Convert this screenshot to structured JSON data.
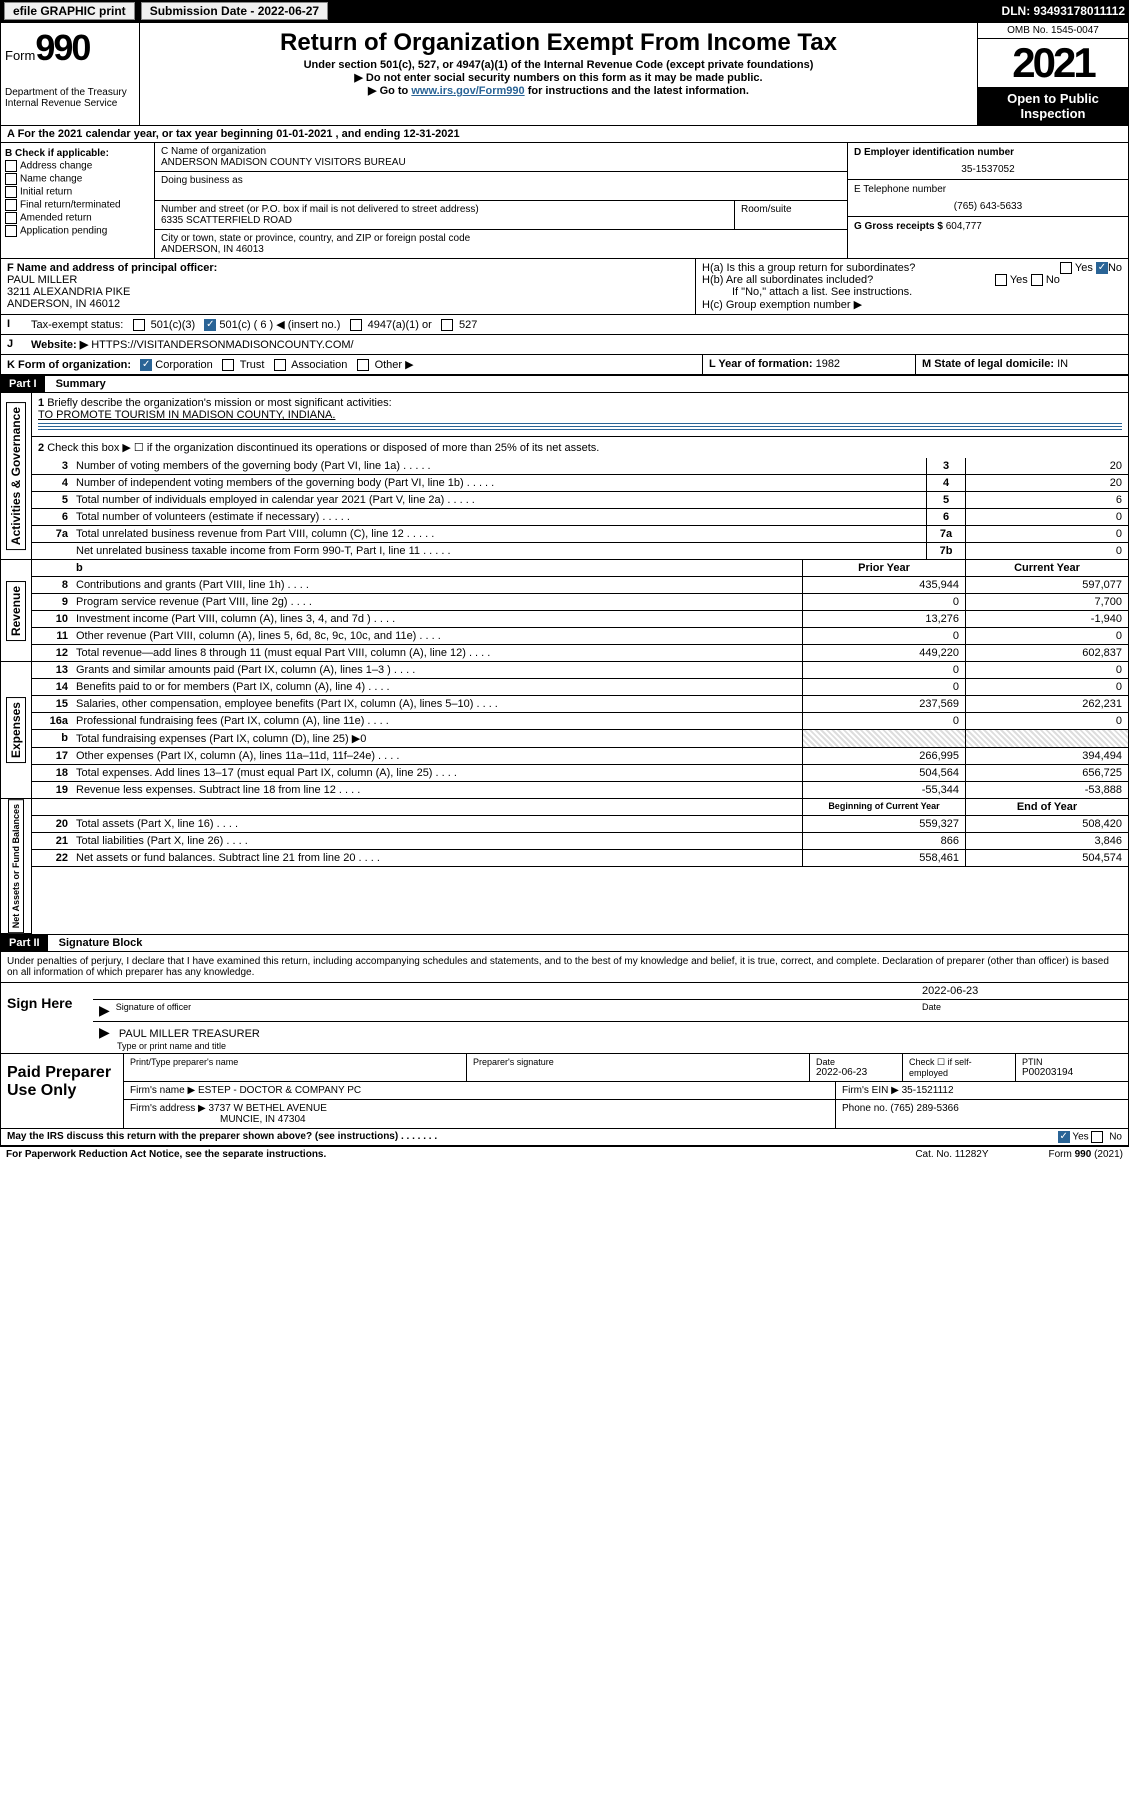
{
  "topbar": {
    "efile": "efile GRAPHIC print",
    "submission_label": "Submission Date - 2022-06-27",
    "dln": "DLN: 93493178011112"
  },
  "header": {
    "form_prefix": "Form",
    "form_num": "990",
    "dept": "Department of the Treasury",
    "irs": "Internal Revenue Service",
    "title": "Return of Organization Exempt From Income Tax",
    "sub1": "Under section 501(c), 527, or 4947(a)(1) of the Internal Revenue Code (except private foundations)",
    "sub2": "▶ Do not enter social security numbers on this form as it may be made public.",
    "sub3_pre": "▶ Go to ",
    "sub3_link": "www.irs.gov/Form990",
    "sub3_post": " for instructions and the latest information.",
    "omb": "OMB No. 1545-0047",
    "year": "2021",
    "open": "Open to Public Inspection"
  },
  "rowA": "A For the 2021 calendar year, or tax year beginning 01-01-2021    , and ending 12-31-2021",
  "colB": {
    "label": "B Check if applicable:",
    "opts": [
      "Address change",
      "Name change",
      "Initial return",
      "Final return/terminated",
      "Amended return",
      "Application pending"
    ]
  },
  "org": {
    "name_lbl": "C Name of organization",
    "name": "ANDERSON MADISON COUNTY VISITORS BUREAU",
    "dba_lbl": "Doing business as",
    "addr_lbl": "Number and street (or P.O. box if mail is not delivered to street address)",
    "room_lbl": "Room/suite",
    "addr": "6335 SCATTERFIELD ROAD",
    "city_lbl": "City or town, state or province, country, and ZIP or foreign postal code",
    "city": "ANDERSON, IN   46013"
  },
  "right": {
    "ein_lbl": "D Employer identification number",
    "ein": "35-1537052",
    "tel_lbl": "E Telephone number",
    "tel": "(765) 643-5633",
    "gross_lbl": "G Gross receipts $",
    "gross": "604,777"
  },
  "officer": {
    "lbl": "F Name and address of principal officer:",
    "name": "PAUL MILLER",
    "addr1": "3211 ALEXANDRIA PIKE",
    "addr2": "ANDERSON, IN   46012"
  },
  "H": {
    "ha": "H(a)  Is this a group return for subordinates?",
    "hb": "H(b)  Are all subordinates included?",
    "hb_note": "If \"No,\" attach a list. See instructions.",
    "hc": "H(c)  Group exemption number ▶",
    "yes": "Yes",
    "no": "No"
  },
  "I": {
    "lbl": "Tax-exempt status:",
    "opts": [
      "501(c)(3)",
      "501(c) ( 6 ) ◀ (insert no.)",
      "4947(a)(1) or",
      "527"
    ]
  },
  "J": {
    "lbl": "Website: ▶",
    "val": "HTTPS://VISITANDERSONMADISONCOUNTY.COM/"
  },
  "K": {
    "lbl": "K Form of organization:",
    "opts": [
      "Corporation",
      "Trust",
      "Association",
      "Other ▶"
    ]
  },
  "L": {
    "lbl": "L Year of formation:",
    "val": "1982"
  },
  "M": {
    "lbl": "M State of legal domicile:",
    "val": "IN"
  },
  "part1": {
    "hdr": "Part I",
    "title": "Summary"
  },
  "summary": {
    "line1_lbl": "Briefly describe the organization's mission or most significant activities:",
    "line1_val": "TO PROMOTE TOURISM IN MADISON COUNTY, INDIANA.",
    "line2": "Check this box ▶ ☐  if the organization discontinued its operations or disposed of more than 25% of its net assets.",
    "gov_lbl": "Activities & Governance",
    "rev_lbl": "Revenue",
    "exp_lbl": "Expenses",
    "net_lbl": "Net Assets or Fund Balances",
    "lines_gov": [
      {
        "n": "3",
        "d": "Number of voting members of the governing body (Part VI, line 1a)",
        "k": "3",
        "v": "20"
      },
      {
        "n": "4",
        "d": "Number of independent voting members of the governing body (Part VI, line 1b)",
        "k": "4",
        "v": "20"
      },
      {
        "n": "5",
        "d": "Total number of individuals employed in calendar year 2021 (Part V, line 2a)",
        "k": "5",
        "v": "6"
      },
      {
        "n": "6",
        "d": "Total number of volunteers (estimate if necessary)",
        "k": "6",
        "v": "0"
      },
      {
        "n": "7a",
        "d": "Total unrelated business revenue from Part VIII, column (C), line 12",
        "k": "7a",
        "v": "0"
      },
      {
        "n": "",
        "d": "Net unrelated business taxable income from Form 990-T, Part I, line 11",
        "k": "7b",
        "v": "0"
      }
    ],
    "hdr_prior": "Prior Year",
    "hdr_current": "Current Year",
    "lines_rev": [
      {
        "n": "8",
        "d": "Contributions and grants (Part VIII, line 1h)",
        "p": "435,944",
        "c": "597,077"
      },
      {
        "n": "9",
        "d": "Program service revenue (Part VIII, line 2g)",
        "p": "0",
        "c": "7,700"
      },
      {
        "n": "10",
        "d": "Investment income (Part VIII, column (A), lines 3, 4, and 7d )",
        "p": "13,276",
        "c": "-1,940"
      },
      {
        "n": "11",
        "d": "Other revenue (Part VIII, column (A), lines 5, 6d, 8c, 9c, 10c, and 11e)",
        "p": "0",
        "c": "0"
      },
      {
        "n": "12",
        "d": "Total revenue—add lines 8 through 11 (must equal Part VIII, column (A), line 12)",
        "p": "449,220",
        "c": "602,837"
      }
    ],
    "lines_exp": [
      {
        "n": "13",
        "d": "Grants and similar amounts paid (Part IX, column (A), lines 1–3 )",
        "p": "0",
        "c": "0"
      },
      {
        "n": "14",
        "d": "Benefits paid to or for members (Part IX, column (A), line 4)",
        "p": "0",
        "c": "0"
      },
      {
        "n": "15",
        "d": "Salaries, other compensation, employee benefits (Part IX, column (A), lines 5–10)",
        "p": "237,569",
        "c": "262,231"
      },
      {
        "n": "16a",
        "d": "Professional fundraising fees (Part IX, column (A), line 11e)",
        "p": "0",
        "c": "0"
      },
      {
        "n": "b",
        "d": "Total fundraising expenses (Part IX, column (D), line 25) ▶0",
        "p": "",
        "c": "",
        "shade": true
      },
      {
        "n": "17",
        "d": "Other expenses (Part IX, column (A), lines 11a–11d, 11f–24e)",
        "p": "266,995",
        "c": "394,494"
      },
      {
        "n": "18",
        "d": "Total expenses. Add lines 13–17 (must equal Part IX, column (A), line 25)",
        "p": "504,564",
        "c": "656,725"
      },
      {
        "n": "19",
        "d": "Revenue less expenses. Subtract line 18 from line 12",
        "p": "-55,344",
        "c": "-53,888"
      }
    ],
    "hdr_beg": "Beginning of Current Year",
    "hdr_end": "End of Year",
    "lines_net": [
      {
        "n": "20",
        "d": "Total assets (Part X, line 16)",
        "p": "559,327",
        "c": "508,420"
      },
      {
        "n": "21",
        "d": "Total liabilities (Part X, line 26)",
        "p": "866",
        "c": "3,846"
      },
      {
        "n": "22",
        "d": "Net assets or fund balances. Subtract line 21 from line 20",
        "p": "558,461",
        "c": "504,574"
      }
    ]
  },
  "part2": {
    "hdr": "Part II",
    "title": "Signature Block"
  },
  "sig": {
    "decl": "Under penalties of perjury, I declare that I have examined this return, including accompanying schedules and statements, and to the best of my knowledge and belief, it is true, correct, and complete. Declaration of preparer (other than officer) is based on all information of which preparer has any knowledge.",
    "sign_here": "Sign Here",
    "sig_officer": "Signature of officer",
    "date_lbl": "Date",
    "date": "2022-06-23",
    "name": "PAUL MILLER TREASURER",
    "name_lbl": "Type or print name and title"
  },
  "paid": {
    "lbl": "Paid Preparer Use Only",
    "h1": "Print/Type preparer's name",
    "h2": "Preparer's signature",
    "h3": "Date",
    "h3v": "2022-06-23",
    "h4": "Check ☐ if self-employed",
    "h5": "PTIN",
    "h5v": "P00203194",
    "firm_name_lbl": "Firm's name    ▶",
    "firm_name": "ESTEP - DOCTOR & COMPANY PC",
    "firm_ein_lbl": "Firm's EIN ▶",
    "firm_ein": "35-1521112",
    "firm_addr_lbl": "Firm's address ▶",
    "firm_addr1": "3737 W BETHEL AVENUE",
    "firm_addr2": "MUNCIE, IN   47304",
    "phone_lbl": "Phone no.",
    "phone": "(765) 289-5366"
  },
  "footer": {
    "q": "May the IRS discuss this return with the preparer shown above? (see instructions)",
    "yes": "Yes",
    "no": "No",
    "pra": "For Paperwork Reduction Act Notice, see the separate instructions.",
    "cat": "Cat. No. 11282Y",
    "form": "Form 990 (2021)"
  }
}
